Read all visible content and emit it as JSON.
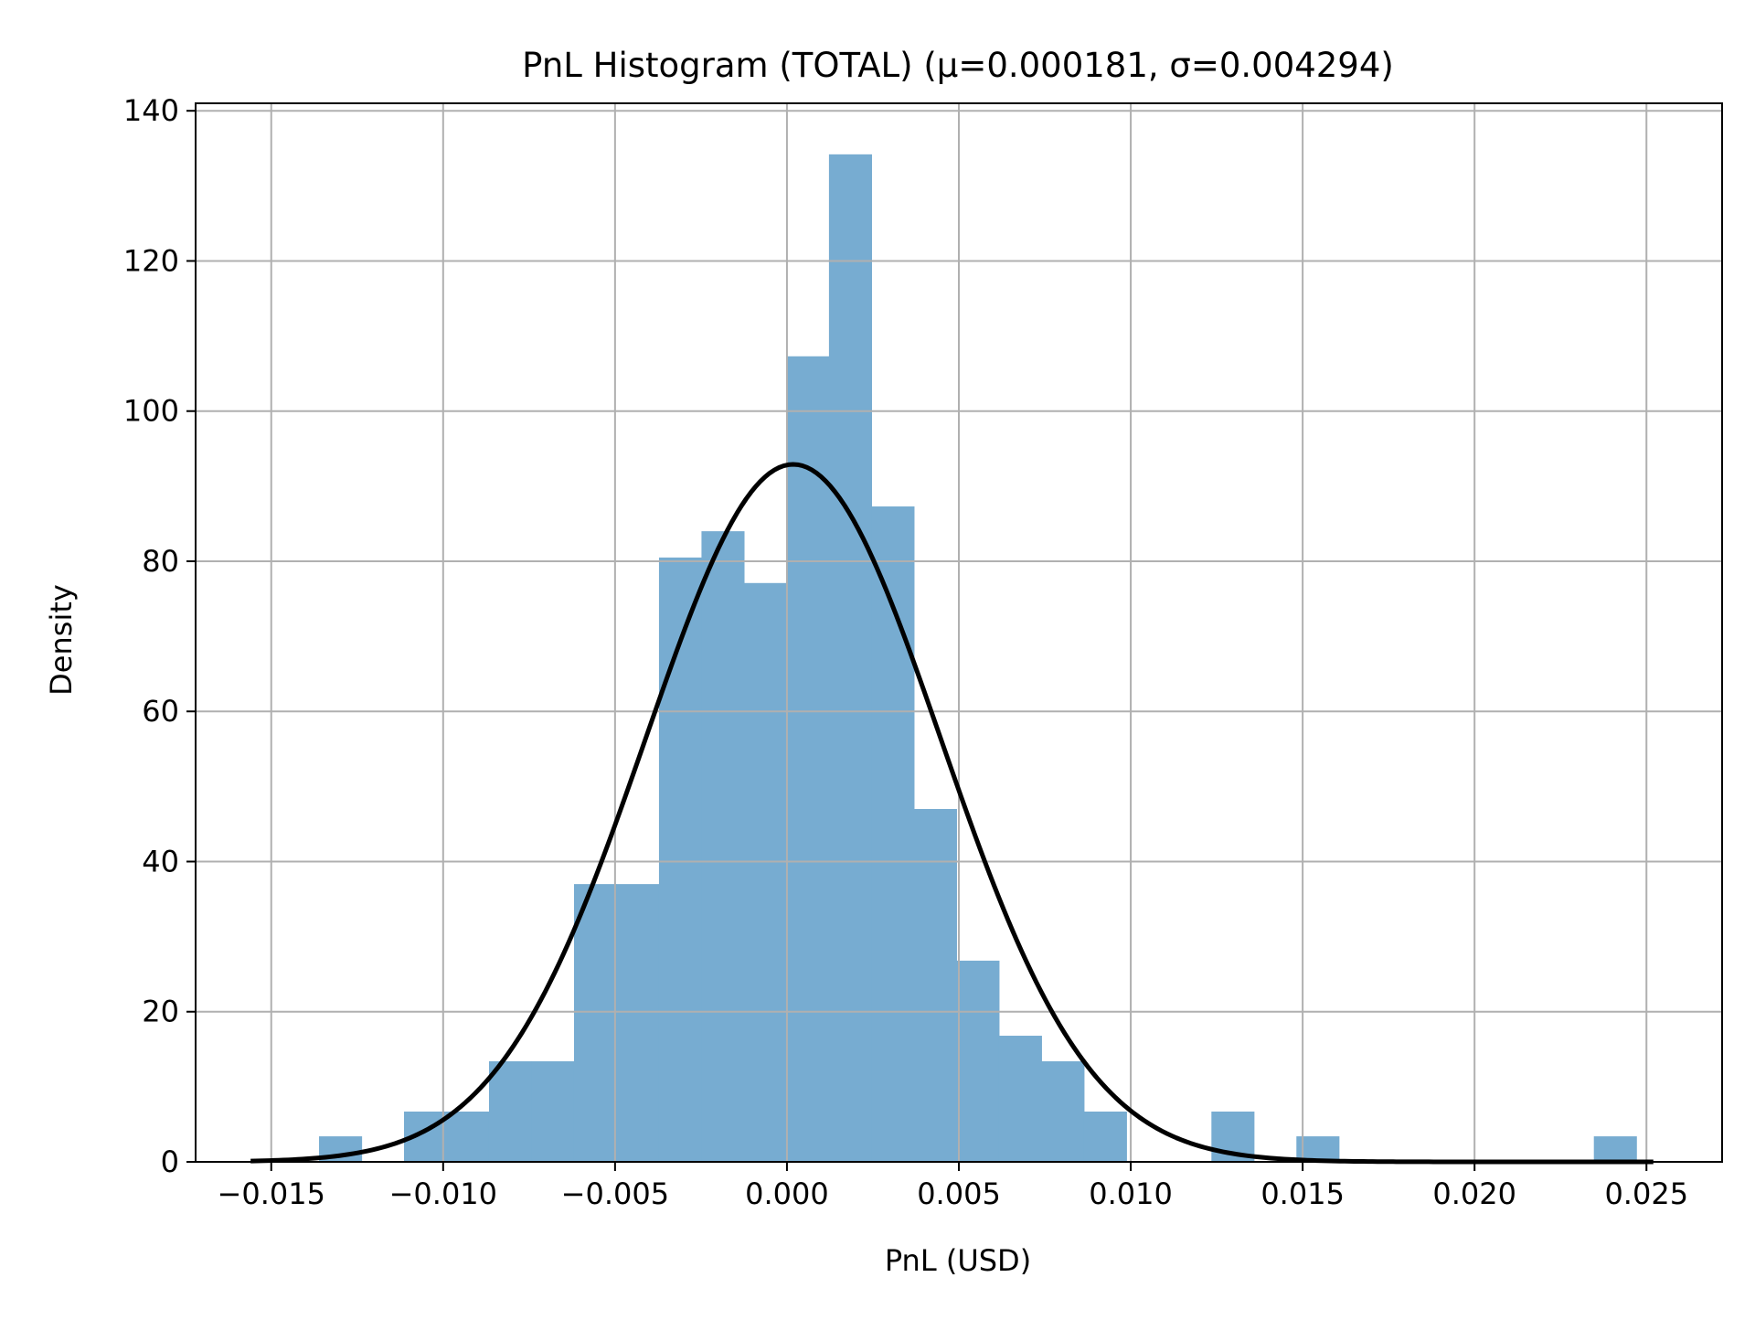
{
  "chart_data": {
    "type": "bar",
    "subtype": "histogram-with-normal-fit",
    "title": "PnL Histogram (TOTAL) (μ=0.000181, σ=0.004294)",
    "xlabel": "PnL (USD)",
    "ylabel": "Density",
    "xlim": [
      -0.0172,
      0.0272
    ],
    "ylim": [
      0,
      141
    ],
    "xticks": [
      -0.015,
      -0.01,
      -0.005,
      0.0,
      0.005,
      0.01,
      0.015,
      0.02,
      0.025
    ],
    "xtick_labels": [
      "−0.015",
      "−0.010",
      "−0.005",
      "0.000",
      "0.005",
      "0.010",
      "0.015",
      "0.020",
      "0.025"
    ],
    "yticks": [
      0,
      20,
      40,
      60,
      80,
      100,
      120,
      140
    ],
    "ytick_labels": [
      "0",
      "20",
      "40",
      "60",
      "80",
      "100",
      "120",
      "140"
    ],
    "grid": true,
    "bins": {
      "start": -0.01361,
      "width": 0.001236,
      "densities": [
        3.4,
        0,
        6.7,
        6.7,
        13.4,
        13.4,
        37,
        37,
        80.5,
        84,
        77.1,
        107.3,
        134.2,
        87.3,
        47,
        26.8,
        16.8,
        13.4,
        6.7,
        0,
        0,
        6.7,
        0,
        3.4,
        0,
        0,
        0,
        0,
        0,
        0,
        3.4
      ]
    },
    "normal_fit": {
      "mu": 0.000181,
      "sigma": 0.004294,
      "x_range": [
        -0.0156,
        0.0252
      ]
    },
    "colors": {
      "bars": "#77acd1",
      "curve": "#000000",
      "grid": "#b0b0b0"
    }
  }
}
